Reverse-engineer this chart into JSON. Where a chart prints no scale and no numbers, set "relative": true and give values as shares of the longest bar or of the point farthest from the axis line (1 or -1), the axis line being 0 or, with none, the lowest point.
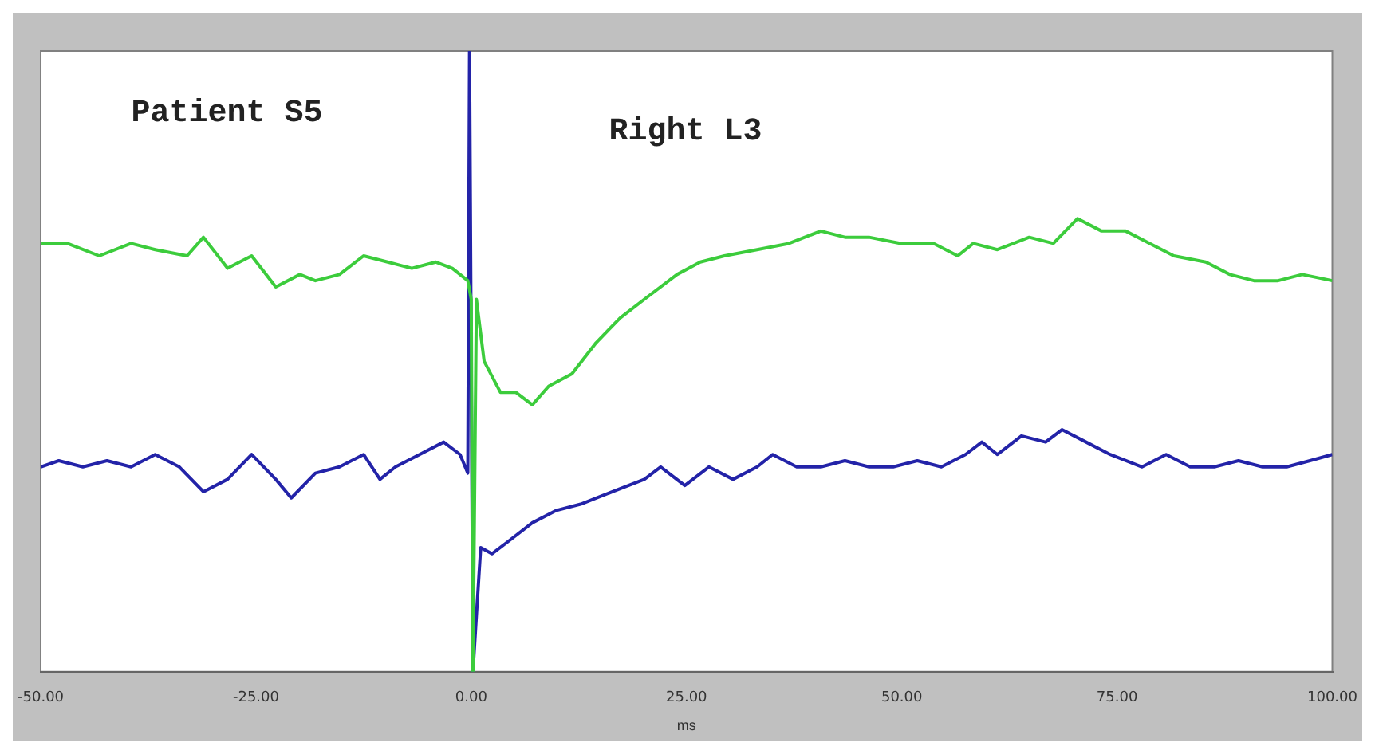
{
  "chart_data": {
    "type": "line",
    "relative": true,
    "xlabel": "ms",
    "xlim": [
      -50,
      100
    ],
    "xticks": [
      {
        "value": -50,
        "label": "-50.00"
      },
      {
        "value": -25,
        "label": "-25.00"
      },
      {
        "value": 0,
        "label": "0.00"
      },
      {
        "value": 25,
        "label": "25.00"
      },
      {
        "value": 50,
        "label": "50.00"
      },
      {
        "value": 75,
        "label": "75.00"
      },
      {
        "value": 100,
        "label": "100.00"
      }
    ],
    "annotations": [
      "Patient S5",
      "Right L3"
    ],
    "grid": false,
    "legend": false,
    "marker": "none",
    "line_style": "solid",
    "series": [
      {
        "color": "#3ccc3c",
        "x": [
          -50,
          -46.9,
          -43.2,
          -39.5,
          -36.7,
          -33,
          -31.1,
          -28.3,
          -25.5,
          -22.7,
          -19.9,
          -18.1,
          -15.3,
          -12.5,
          -9.7,
          -6.9,
          -4.1,
          -2.2,
          -0.4,
          0,
          0.2,
          0.6,
          1.5,
          3.4,
          5.2,
          7.1,
          9,
          11.7,
          14.5,
          17.3,
          20.1,
          23.9,
          26.6,
          29.4,
          33.2,
          36.9,
          40.6,
          43.4,
          46.2,
          49.9,
          51.8,
          53.7,
          56.5,
          58.3,
          61.1,
          64.8,
          67.6,
          70.4,
          73.2,
          76,
          78.8,
          81.6,
          85.3,
          88.1,
          90.9,
          93.7,
          96.5,
          100
        ],
        "values": [
          0.69,
          0.69,
          0.67,
          0.69,
          0.68,
          0.67,
          0.7,
          0.65,
          0.67,
          0.62,
          0.64,
          0.63,
          0.64,
          0.67,
          0.66,
          0.65,
          0.66,
          0.65,
          0.63,
          0.6,
          0,
          0.6,
          0.5,
          0.45,
          0.45,
          0.43,
          0.46,
          0.48,
          0.53,
          0.57,
          0.6,
          0.64,
          0.66,
          0.67,
          0.68,
          0.69,
          0.71,
          0.7,
          0.7,
          0.69,
          0.69,
          0.69,
          0.67,
          0.69,
          0.68,
          0.7,
          0.69,
          0.73,
          0.71,
          0.71,
          0.69,
          0.67,
          0.66,
          0.64,
          0.63,
          0.63,
          0.64,
          0.63
        ]
      },
      {
        "color": "#2323a8",
        "x": [
          -50,
          -47.9,
          -45.1,
          -42.3,
          -39.5,
          -36.7,
          -33.9,
          -31.1,
          -28.3,
          -25.5,
          -22.7,
          -20.9,
          -18.1,
          -15.3,
          -12.5,
          -10.6,
          -8.8,
          -6,
          -3.2,
          -1.3,
          -0.4,
          -0.2,
          0.2,
          0.6,
          1.1,
          2.4,
          4.3,
          7.1,
          9.9,
          12.7,
          16.4,
          20.1,
          22,
          24.8,
          27.6,
          30.4,
          33.2,
          35,
          37.8,
          40.6,
          43.4,
          46.2,
          49,
          51.8,
          54.6,
          57.4,
          59.3,
          61.1,
          63.9,
          66.7,
          68.6,
          71.4,
          74.2,
          77.9,
          80.7,
          83.5,
          86.3,
          89.1,
          91.9,
          94.7,
          97.4,
          100
        ],
        "values": [
          0.33,
          0.34,
          0.33,
          0.34,
          0.33,
          0.35,
          0.33,
          0.29,
          0.31,
          0.35,
          0.31,
          0.28,
          0.32,
          0.33,
          0.35,
          0.31,
          0.33,
          0.35,
          0.37,
          0.35,
          0.32,
          1,
          0,
          0.09,
          0.2,
          0.19,
          0.21,
          0.24,
          0.26,
          0.27,
          0.29,
          0.31,
          0.33,
          0.3,
          0.33,
          0.31,
          0.33,
          0.35,
          0.33,
          0.33,
          0.34,
          0.33,
          0.33,
          0.34,
          0.33,
          0.35,
          0.37,
          0.35,
          0.38,
          0.37,
          0.39,
          0.37,
          0.35,
          0.33,
          0.35,
          0.33,
          0.33,
          0.34,
          0.33,
          0.33,
          0.34,
          0.35
        ]
      }
    ]
  }
}
